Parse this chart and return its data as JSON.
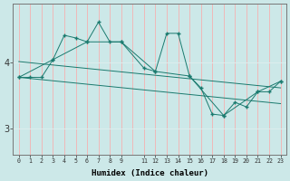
{
  "xlabel": "Humidex (Indice chaleur)",
  "bg_color": "#cce8e8",
  "line_color": "#1a7a6e",
  "grid_h_color": "#e0f5f5",
  "grid_v_color": "#f5b0b0",
  "xlim": [
    -0.5,
    23.5
  ],
  "ylim": [
    2.6,
    4.9
  ],
  "yticks": [
    3,
    4
  ],
  "xticks": [
    0,
    1,
    2,
    3,
    4,
    5,
    6,
    7,
    8,
    9,
    11,
    12,
    13,
    14,
    15,
    16,
    17,
    18,
    19,
    20,
    21,
    22,
    23
  ],
  "series1_x": [
    0,
    1,
    2,
    3,
    4,
    5,
    6,
    7,
    8,
    9,
    11,
    12,
    13,
    14,
    15,
    16,
    17,
    18,
    19,
    20,
    21,
    22,
    23
  ],
  "series1_y": [
    3.78,
    3.78,
    3.78,
    4.05,
    4.42,
    4.38,
    4.32,
    4.62,
    4.32,
    4.32,
    3.92,
    3.87,
    4.45,
    4.45,
    3.8,
    3.62,
    3.22,
    3.2,
    3.4,
    3.33,
    3.56,
    3.56,
    3.72
  ],
  "series2_x": [
    0,
    3,
    6,
    9,
    12,
    15,
    18,
    21,
    23
  ],
  "series2_y": [
    3.78,
    4.05,
    4.32,
    4.32,
    3.87,
    3.8,
    3.2,
    3.56,
    3.72
  ],
  "series3_x": [
    0,
    23
  ],
  "series3_y": [
    4.02,
    3.62
  ],
  "series4_x": [
    0,
    23
  ],
  "series4_y": [
    3.78,
    3.38
  ]
}
